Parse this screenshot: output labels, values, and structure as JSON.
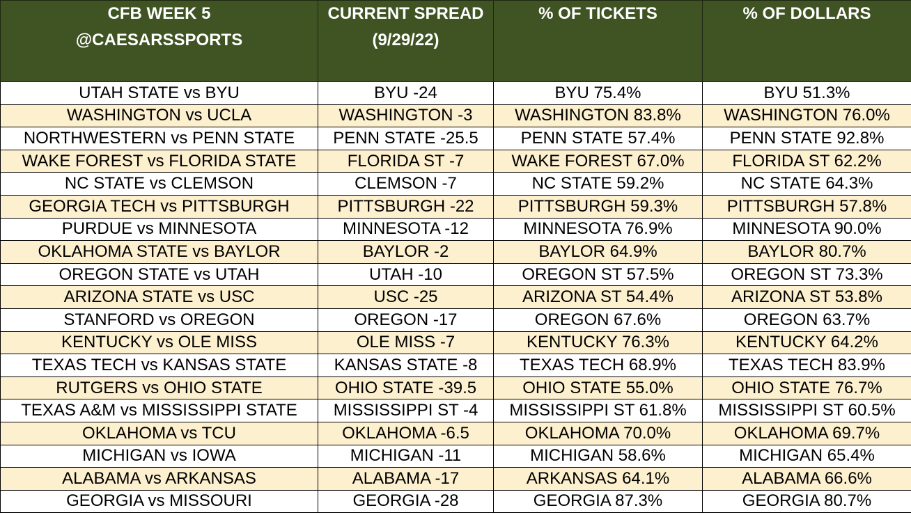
{
  "headers": {
    "matchup": "CFB WEEK 5\n@CAESARSSPORTS",
    "spread": "CURRENT SPREAD\n(9/29/22)",
    "tickets": "% OF TICKETS",
    "dollars": "% OF DOLLARS"
  },
  "colors": {
    "header_bg": "#3f5323",
    "header_text": "#ffffff",
    "alt_row_bg": "#fdf0cf",
    "row_bg": "#ffffff"
  },
  "rows": [
    {
      "matchup": "UTAH STATE vs BYU",
      "spread": "BYU -24",
      "tickets": "BYU 75.4%",
      "dollars": "BYU 51.3%"
    },
    {
      "matchup": "WASHINGTON vs UCLA",
      "spread": "WASHINGTON -3",
      "tickets": "WASHINGTON 83.8%",
      "dollars": "WASHINGTON 76.0%"
    },
    {
      "matchup": "NORTHWESTERN vs PENN STATE",
      "spread": "PENN STATE -25.5",
      "tickets": "PENN STATE 57.4%",
      "dollars": "PENN STATE 92.8%"
    },
    {
      "matchup": "WAKE FOREST vs FLORIDA STATE",
      "spread": "FLORIDA ST -7",
      "tickets": "WAKE FOREST 67.0%",
      "dollars": "FLORIDA ST 62.2%"
    },
    {
      "matchup": "NC STATE vs CLEMSON",
      "spread": "CLEMSON -7",
      "tickets": "NC STATE 59.2%",
      "dollars": "NC STATE 64.3%"
    },
    {
      "matchup": "GEORGIA TECH vs PITTSBURGH",
      "spread": "PITTSBURGH -22",
      "tickets": "PITTSBURGH 59.3%",
      "dollars": "PITTSBURGH 57.8%"
    },
    {
      "matchup": "PURDUE vs MINNESOTA",
      "spread": "MINNESOTA -12",
      "tickets": "MINNESOTA 76.9%",
      "dollars": "MINNESOTA 90.0%"
    },
    {
      "matchup": "OKLAHOMA STATE vs BAYLOR",
      "spread": "BAYLOR -2",
      "tickets": "BAYLOR 64.9%",
      "dollars": "BAYLOR 80.7%"
    },
    {
      "matchup": "OREGON STATE vs UTAH",
      "spread": "UTAH -10",
      "tickets": "OREGON ST 57.5%",
      "dollars": "OREGON ST 73.3%"
    },
    {
      "matchup": "ARIZONA STATE vs USC",
      "spread": "USC -25",
      "tickets": "ARIZONA ST 54.4%",
      "dollars": "ARIZONA ST 53.8%"
    },
    {
      "matchup": "STANFORD vs OREGON",
      "spread": "OREGON -17",
      "tickets": "OREGON 67.6%",
      "dollars": "OREGON 63.7%"
    },
    {
      "matchup": "KENTUCKY vs OLE MISS",
      "spread": "OLE MISS -7",
      "tickets": "KENTUCKY 76.3%",
      "dollars": "KENTUCKY 64.2%"
    },
    {
      "matchup": "TEXAS TECH vs KANSAS STATE",
      "spread": "KANSAS STATE -8",
      "tickets": "TEXAS TECH 68.9%",
      "dollars": "TEXAS TECH 83.9%"
    },
    {
      "matchup": "RUTGERS vs OHIO STATE",
      "spread": "OHIO STATE -39.5",
      "tickets": "OHIO STATE 55.0%",
      "dollars": "OHIO STATE 76.7%"
    },
    {
      "matchup": "TEXAS A&M vs MISSISSIPPI STATE",
      "spread": "MISSISSIPPI ST -4",
      "tickets": "MISSISSIPPI ST 61.8%",
      "dollars": "MISSISSIPPI ST 60.5%"
    },
    {
      "matchup": "OKLAHOMA vs TCU",
      "spread": "OKLAHOMA -6.5",
      "tickets": "OKLAHOMA 70.0%",
      "dollars": "OKLAHOMA 69.7%"
    },
    {
      "matchup": "MICHIGAN vs IOWA",
      "spread": "MICHIGAN -11",
      "tickets": "MICHIGAN 58.6%",
      "dollars": "MICHIGAN 65.4%"
    },
    {
      "matchup": "ALABAMA vs ARKANSAS",
      "spread": "ALABAMA -17",
      "tickets": "ARKANSAS 64.1%",
      "dollars": "ALABAMA 66.6%"
    },
    {
      "matchup": "GEORGIA vs MISSOURI",
      "spread": "GEORGIA -28",
      "tickets": "GEORGIA 87.3%",
      "dollars": "GEORGIA 80.7%"
    }
  ]
}
